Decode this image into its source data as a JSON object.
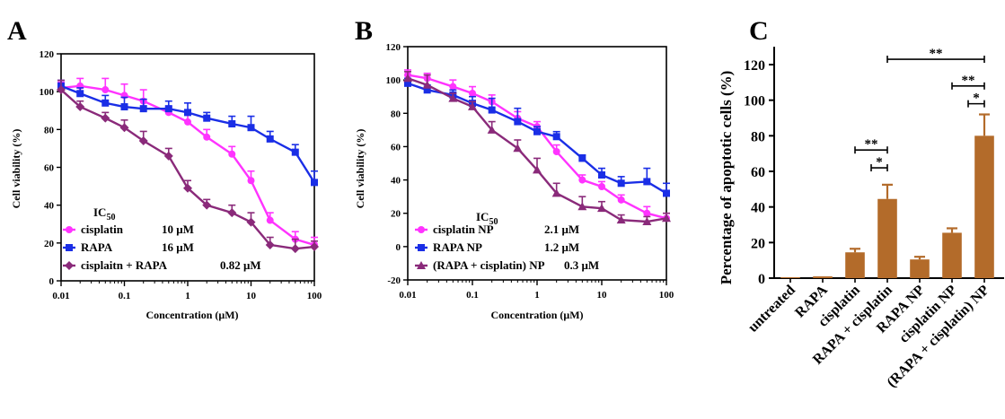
{
  "colors": {
    "cisplatin": "#ff33ff",
    "rapa": "#1a2ee6",
    "combo": "#8a2a7a",
    "bar": "#b36b2a"
  },
  "chart_data": [
    {
      "panel": "A",
      "type": "line",
      "xscale": "log",
      "xlim": [
        0.01,
        100
      ],
      "ylim": [
        0,
        120
      ],
      "xlabel": "Concentration (μM)",
      "ylabel": "Cell viability (%)",
      "x_ticks": [
        0.01,
        0.1,
        1,
        10,
        100
      ],
      "x_tick_labels": [
        "0.01",
        "0.1",
        "1",
        "10",
        "100"
      ],
      "y_ticks": [
        0,
        20,
        40,
        60,
        80,
        100,
        120
      ],
      "y_tick_labels": [
        "0",
        "20",
        "40",
        "60",
        "80",
        "100",
        "120"
      ],
      "x": [
        0.01,
        0.02,
        0.05,
        0.1,
        0.2,
        0.5,
        1,
        2,
        5,
        10,
        20,
        50,
        100
      ],
      "legend_title": "IC",
      "legend_title_sub": "50",
      "series": [
        {
          "name": "cisplatin",
          "ic50": "10 μM",
          "color": "#ff33ff",
          "marker": "circle",
          "values": [
            102,
            103,
            101,
            98,
            95,
            89,
            84,
            76,
            67,
            53,
            32,
            22,
            19
          ],
          "errors": [
            3,
            4,
            6,
            6,
            6,
            3,
            4,
            4,
            4,
            5,
            4,
            4,
            4
          ]
        },
        {
          "name": "RAPA",
          "ic50": "16 μM",
          "color": "#1a2ee6",
          "marker": "square",
          "values": [
            103,
            99,
            94,
            92,
            91,
            91,
            89,
            86,
            83,
            81,
            75,
            68,
            52
          ],
          "errors": [
            3,
            3,
            4,
            5,
            5,
            4,
            5,
            3,
            4,
            6,
            4,
            4,
            6
          ]
        },
        {
          "name": "cisplaitn + RAPA",
          "ic50": "0.82 μM",
          "color": "#8a2a7a",
          "marker": "diamond",
          "values": [
            101,
            92,
            86,
            81,
            74,
            66,
            49,
            40,
            36,
            31,
            19,
            17,
            18
          ],
          "errors": [
            5,
            3,
            3,
            4,
            5,
            4,
            4,
            3,
            4,
            5,
            4,
            5,
            3
          ]
        }
      ]
    },
    {
      "panel": "B",
      "type": "line",
      "xscale": "log",
      "xlim": [
        0.01,
        100
      ],
      "ylim": [
        -20,
        120
      ],
      "xlabel": "Concentration (μM)",
      "ylabel": "Cell viability (%)",
      "x_ticks": [
        0.01,
        0.1,
        1,
        10,
        100
      ],
      "x_tick_labels": [
        "0.01",
        "0.1",
        "1",
        "10",
        "100"
      ],
      "y_ticks": [
        -20,
        0,
        20,
        40,
        60,
        80,
        100,
        120
      ],
      "y_tick_labels": [
        "-20",
        "0",
        "20",
        "40",
        "60",
        "80",
        "100",
        "120"
      ],
      "x": [
        0.01,
        0.02,
        0.05,
        0.1,
        0.2,
        0.5,
        1,
        2,
        5,
        10,
        20,
        50,
        100
      ],
      "legend_title": "IC",
      "legend_title_sub": "50",
      "series": [
        {
          "name": "cisplatin NP",
          "ic50": "2.1 μM",
          "color": "#ff33ff",
          "marker": "circle",
          "values": [
            103,
            101,
            96,
            92,
            87,
            77,
            72,
            57,
            40,
            36,
            28,
            20,
            17
          ],
          "errors": [
            3,
            3,
            4,
            4,
            4,
            4,
            3,
            4,
            3,
            3,
            3,
            4,
            3
          ]
        },
        {
          "name": "RAPA NP",
          "ic50": "1.2 μM",
          "color": "#1a2ee6",
          "marker": "square",
          "values": [
            98,
            94,
            91,
            86,
            82,
            75,
            69,
            66,
            53,
            43,
            38,
            39,
            32
          ],
          "errors": [
            3,
            3,
            3,
            4,
            7,
            8,
            3,
            3,
            2,
            4,
            4,
            8,
            6
          ]
        },
        {
          "name": "(RAPA + cisplatin) NP",
          "ic50": "0.3 μM",
          "color": "#8a2a7a",
          "marker": "triangle",
          "values": [
            101,
            97,
            89,
            84,
            70,
            59,
            46,
            32,
            24,
            23,
            16,
            15,
            17
          ],
          "errors": [
            4,
            6,
            3,
            3,
            5,
            5,
            7,
            6,
            6,
            4,
            3,
            3,
            3
          ]
        }
      ]
    },
    {
      "panel": "C",
      "type": "bar",
      "ylabel": "Percentage of apoptotic cells (%)",
      "ylim": [
        0,
        130
      ],
      "y_ticks": [
        0,
        20,
        40,
        60,
        80,
        100,
        120
      ],
      "y_tick_labels": [
        "0",
        "20",
        "40",
        "60",
        "80",
        "100",
        "120"
      ],
      "categories": [
        "untreated",
        "RAPA",
        "cisplatin",
        "RAPA + cisplatin",
        "RAPA NP",
        "cisplatin NP",
        "(RAPA + cisplatin) NP"
      ],
      "values": [
        0.5,
        1,
        14.5,
        44.5,
        10.5,
        25.5,
        80
      ],
      "errors": [
        0,
        0,
        2,
        8,
        1.5,
        2.5,
        12
      ],
      "color": "#b36b2a",
      "significance": [
        {
          "from": 2,
          "to": 3,
          "label": "**",
          "y": 72
        },
        {
          "from": 2.5,
          "to": 3,
          "label": "*",
          "y": 62
        },
        {
          "from": 3,
          "to": 6,
          "label": "**",
          "y": 123
        },
        {
          "from": 5,
          "to": 6,
          "label": "**",
          "y": 108
        },
        {
          "from": 5.5,
          "to": 6,
          "label": "*",
          "y": 98
        }
      ]
    }
  ]
}
